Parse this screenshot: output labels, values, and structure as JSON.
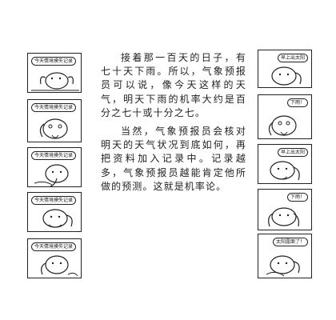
{
  "paragraphs": [
    "接着那一百天的日子，有七十天下雨。所以，气象预报员可以说，像今天这样的天气，明天下雨的机率大约是百分之七十或十分之七。",
    "当然，气象预报员会核对明天的天气状况到底如何，再把资料加入记录中。记录越多，气象预报员越能肯定他所做的预测。这就是机率论。"
  ],
  "left_panels": [
    {
      "bubble": "今天情境摸失记录"
    },
    {
      "bubble": "今天情境摸失记录"
    },
    {
      "bubble": "今天情境摸失记录"
    },
    {
      "bubble": "今天情境摸失记录"
    },
    {
      "bubble": "今天情境摸失记录"
    }
  ],
  "right_panels": [
    {
      "bubble": "早上出太阳"
    },
    {
      "bubble": "下雨！"
    },
    {
      "bubble": "早上出太阳"
    },
    {
      "bubble": "下雨！"
    },
    {
      "bubble": "太阳露面了！"
    }
  ]
}
